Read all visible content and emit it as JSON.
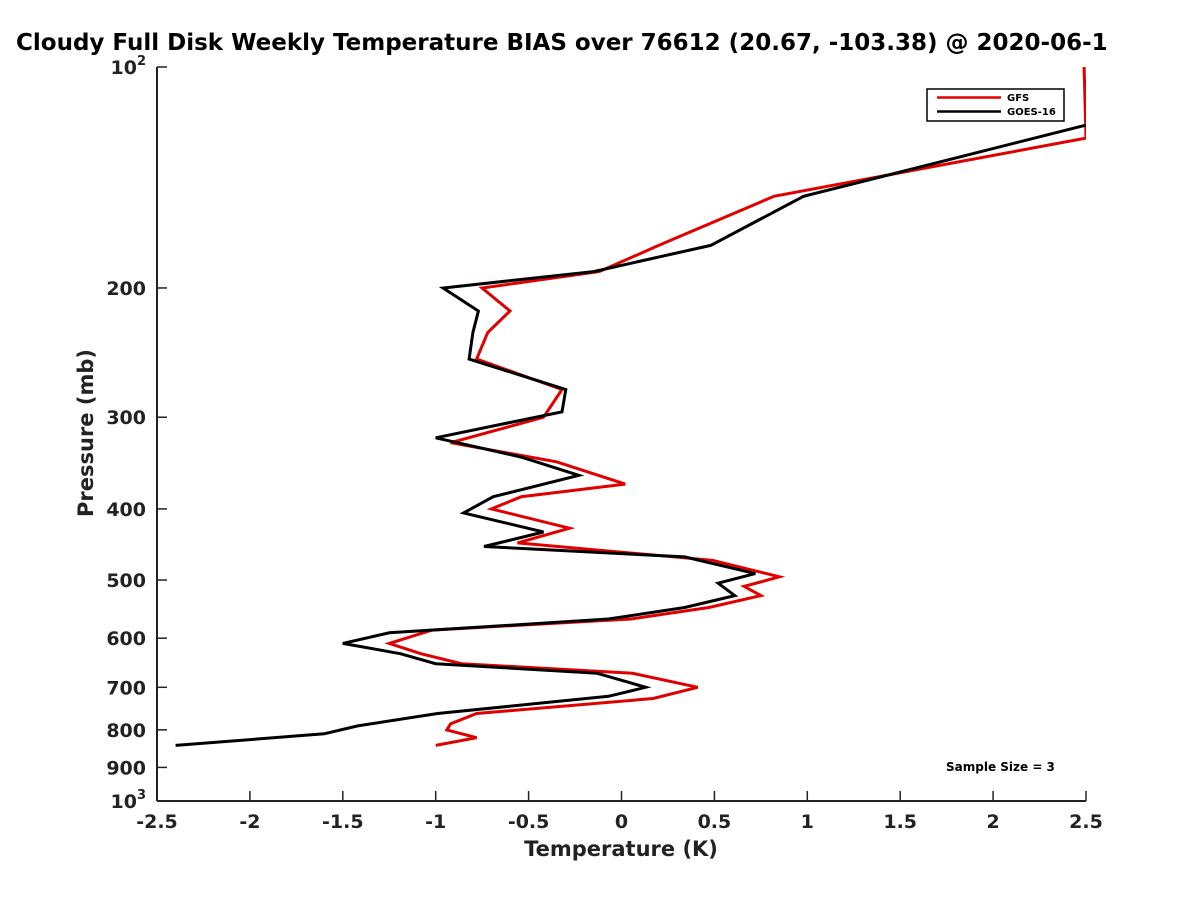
{
  "chart_data": {
    "type": "line",
    "title": "Cloudy Full Disk Weekly Temperature BIAS over 76612 (20.67, -103.38) @ 2020-06-1",
    "xlabel": "Temperature (K)",
    "ylabel": "Pressure (mb)",
    "xlim": [
      -2.5,
      2.5
    ],
    "ylim": [
      100,
      1000
    ],
    "y_scale": "log",
    "y_reversed": true,
    "grid": false,
    "legend_position": "top-right",
    "annotation": "Sample Size = 3",
    "x_ticks": [
      {
        "value": -2.5,
        "label": "-2.5"
      },
      {
        "value": -2,
        "label": "-2"
      },
      {
        "value": -1.5,
        "label": "-1.5"
      },
      {
        "value": -1,
        "label": "-1"
      },
      {
        "value": -0.5,
        "label": "-0.5"
      },
      {
        "value": 0,
        "label": "0"
      },
      {
        "value": 0.5,
        "label": "0.5"
      },
      {
        "value": 1,
        "label": "1"
      },
      {
        "value": 1.5,
        "label": "1.5"
      },
      {
        "value": 2,
        "label": "2"
      },
      {
        "value": 2.5,
        "label": "2.5"
      }
    ],
    "y_ticks": [
      {
        "value": 100,
        "label": "10",
        "exp": "2"
      },
      {
        "value": 200,
        "label": "200"
      },
      {
        "value": 300,
        "label": "300"
      },
      {
        "value": 400,
        "label": "400"
      },
      {
        "value": 500,
        "label": "500"
      },
      {
        "value": 600,
        "label": "600"
      },
      {
        "value": 700,
        "label": "700"
      },
      {
        "value": 800,
        "label": "800"
      },
      {
        "value": 900,
        "label": "900"
      },
      {
        "value": 1000,
        "label": "10",
        "exp": "3"
      }
    ],
    "series": [
      {
        "name": "GFS",
        "color": "#e00000",
        "points": [
          [
            2.49,
            100
          ],
          [
            2.5,
            125
          ],
          [
            0.82,
            150
          ],
          [
            0.2,
            175
          ],
          [
            -0.12,
            190
          ],
          [
            -0.75,
            200
          ],
          [
            -0.6,
            215
          ],
          [
            -0.72,
            230
          ],
          [
            -0.78,
            250
          ],
          [
            -0.32,
            275
          ],
          [
            -0.42,
            300
          ],
          [
            -0.92,
            325
          ],
          [
            -0.35,
            345
          ],
          [
            0.02,
            370
          ],
          [
            -0.54,
            385
          ],
          [
            -0.7,
            400
          ],
          [
            -0.28,
            425
          ],
          [
            -0.56,
            445
          ],
          [
            0.49,
            470
          ],
          [
            0.85,
            495
          ],
          [
            0.66,
            510
          ],
          [
            0.75,
            525
          ],
          [
            0.47,
            545
          ],
          [
            0.05,
            565
          ],
          [
            -1.02,
            585
          ],
          [
            -1.25,
            610
          ],
          [
            -1.08,
            630
          ],
          [
            -0.86,
            650
          ],
          [
            0.06,
            670
          ],
          [
            0.41,
            700
          ],
          [
            0.17,
            725
          ],
          [
            -0.78,
            760
          ],
          [
            -0.92,
            785
          ],
          [
            -0.94,
            800
          ],
          [
            -0.78,
            820
          ],
          [
            -1.0,
            840
          ]
        ]
      },
      {
        "name": "GOES-16",
        "color": "#000000",
        "points": [
          [
            2.5,
            120
          ],
          [
            0.98,
            150
          ],
          [
            0.48,
            175
          ],
          [
            -0.15,
            190
          ],
          [
            -0.96,
            200
          ],
          [
            -0.77,
            215
          ],
          [
            -0.8,
            230
          ],
          [
            -0.82,
            250
          ],
          [
            -0.3,
            275
          ],
          [
            -0.32,
            295
          ],
          [
            -1.0,
            320
          ],
          [
            -0.54,
            340
          ],
          [
            -0.23,
            360
          ],
          [
            -0.69,
            385
          ],
          [
            -0.85,
            405
          ],
          [
            -0.42,
            430
          ],
          [
            -0.74,
            450
          ],
          [
            0.34,
            465
          ],
          [
            0.72,
            490
          ],
          [
            0.52,
            505
          ],
          [
            0.61,
            525
          ],
          [
            0.34,
            545
          ],
          [
            -0.07,
            565
          ],
          [
            -1.25,
            590
          ],
          [
            -1.5,
            610
          ],
          [
            -1.19,
            630
          ],
          [
            -1.0,
            650
          ],
          [
            -0.13,
            670
          ],
          [
            0.13,
            700
          ],
          [
            -0.07,
            720
          ],
          [
            -0.99,
            760
          ],
          [
            -1.42,
            790
          ],
          [
            -1.6,
            810
          ],
          [
            -2.4,
            840
          ]
        ]
      }
    ]
  }
}
